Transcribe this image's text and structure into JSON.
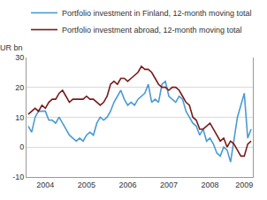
{
  "chart_data": {
    "type": "line",
    "ylabel": "EUR bn",
    "categories": [
      null,
      null,
      null,
      null,
      null,
      "2004",
      null,
      null,
      null,
      null,
      null,
      null,
      null,
      null,
      null,
      null,
      null,
      "2005",
      null,
      null,
      null,
      null,
      null,
      null,
      null,
      null,
      null,
      null,
      null,
      "2006",
      null,
      null,
      null,
      null,
      null,
      null,
      null,
      null,
      null,
      null,
      null,
      "2007",
      null,
      null,
      null,
      null,
      null,
      null,
      null,
      null,
      null,
      null,
      null,
      "2008",
      null,
      null,
      null,
      null,
      null,
      null,
      null,
      null,
      null,
      "2009",
      null,
      null
    ],
    "series": [
      {
        "name": "Portfolio investment in Finland, 12-month moving total",
        "color": "#4a9ad4",
        "values": [
          7,
          5,
          10,
          12,
          12,
          12,
          9,
          9,
          8,
          10,
          8,
          6,
          4,
          3,
          2,
          3,
          2,
          4,
          5,
          4,
          8,
          10,
          9,
          10,
          12,
          15,
          17,
          19,
          16,
          14,
          15,
          14,
          16,
          17,
          18,
          21,
          15,
          16,
          15,
          21,
          22,
          17,
          16,
          15,
          17,
          16,
          12,
          10,
          8,
          7,
          4,
          6,
          2,
          3,
          1,
          -2,
          -3,
          0,
          -1,
          -5,
          2,
          10,
          14,
          18,
          3,
          6
        ]
      },
      {
        "name": "Portfolio investment abroad, 12-month moving total",
        "color": "#7a1a1a",
        "values": [
          11,
          12,
          13,
          12,
          14,
          13,
          15,
          16,
          16,
          18,
          19,
          17,
          15,
          16,
          16,
          16,
          16,
          17,
          16,
          16,
          15,
          14,
          15,
          17,
          21,
          22,
          21,
          23,
          23,
          22,
          23,
          24,
          25,
          27,
          26,
          26,
          25,
          23,
          21,
          20,
          20,
          19,
          20,
          20,
          19,
          17,
          15,
          14,
          10,
          9,
          6,
          6,
          7,
          8,
          6,
          4,
          2,
          3,
          0,
          2,
          1,
          -1,
          -3,
          -3,
          1,
          2
        ]
      }
    ],
    "ylim": [
      -10,
      30
    ],
    "yticks": [
      -10,
      0,
      10,
      20,
      30
    ],
    "grid": true,
    "legend": "top left"
  }
}
